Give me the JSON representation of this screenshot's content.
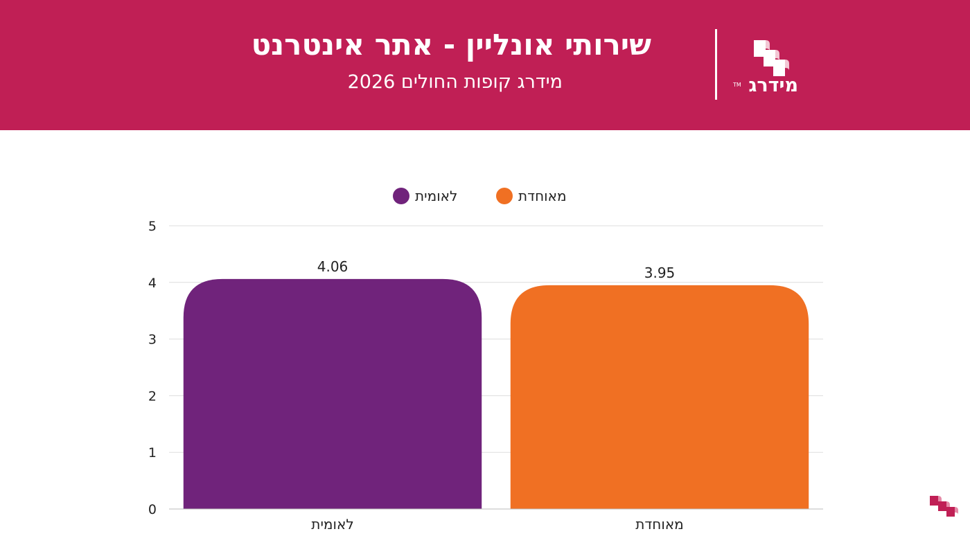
{
  "header": {
    "title": "שירותי אונליין - אתר אינטרנט",
    "subtitle": "מידרג קופות החולים 2026",
    "logo_text": "מידרג",
    "logo_tm": "TM"
  },
  "colors": {
    "header_bg": "#c01f55",
    "leumit": "#70237b",
    "meuhedet": "#f07023"
  },
  "chart_data": {
    "type": "bar",
    "categories": [
      "לאומית",
      "מאוחדת"
    ],
    "values": [
      4.06,
      3.95
    ],
    "value_labels": [
      "4.06",
      "3.95"
    ],
    "colors": [
      "#70237b",
      "#f07023"
    ],
    "legend": [
      {
        "name": "מאוחדת",
        "color": "#f07023"
      },
      {
        "name": "לאומית",
        "color": "#70237b"
      }
    ],
    "legend_position": "top-center",
    "ylim": [
      0,
      5
    ],
    "yticks": [
      0,
      1,
      2,
      3,
      4,
      5
    ],
    "grid": true,
    "xlabel": "",
    "ylabel": ""
  }
}
